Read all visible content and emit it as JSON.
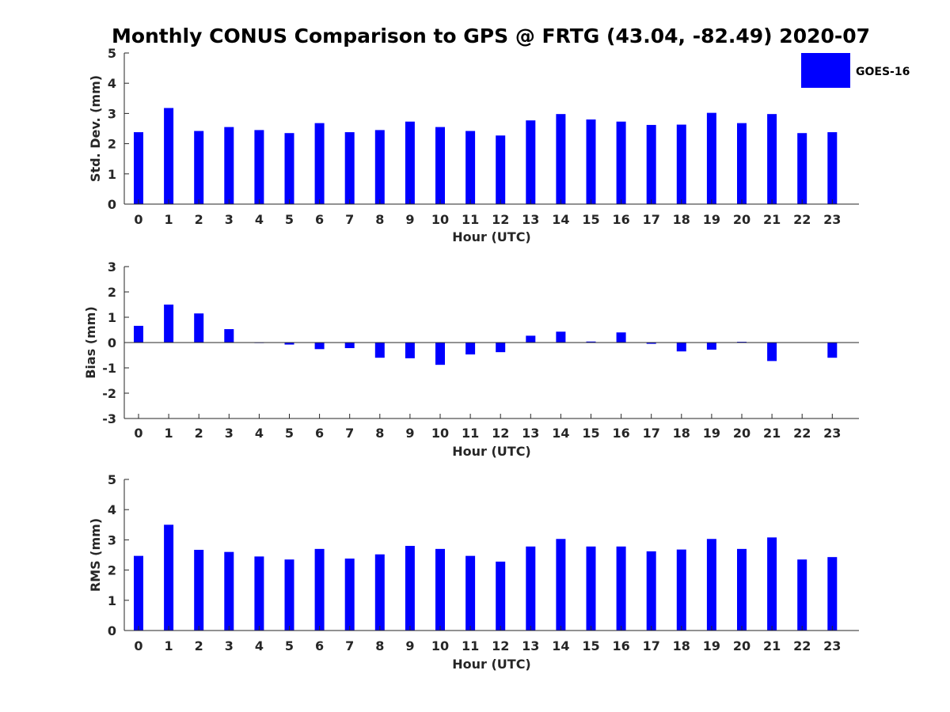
{
  "figure": {
    "title": "Monthly CONUS Comparison to GPS @ FRTG (43.04, -82.49) 2020-07"
  },
  "legend": {
    "label": "GOES-16",
    "color": "#0000ff",
    "placement": "top-right"
  },
  "chart_data": [
    {
      "type": "bar",
      "xlabel": "Hour (UTC)",
      "ylabel": "Std. Dev. (mm)",
      "ylim": [
        0,
        5
      ],
      "yticks": [
        0,
        1,
        2,
        3,
        4,
        5
      ],
      "categories": [
        "0",
        "1",
        "2",
        "3",
        "4",
        "5",
        "6",
        "7",
        "8",
        "9",
        "10",
        "11",
        "12",
        "13",
        "14",
        "15",
        "16",
        "17",
        "18",
        "19",
        "20",
        "21",
        "22",
        "23"
      ],
      "series": [
        {
          "name": "GOES-16",
          "color": "#0000ff",
          "values": [
            2.38,
            3.18,
            2.42,
            2.55,
            2.45,
            2.35,
            2.68,
            2.38,
            2.45,
            2.73,
            2.55,
            2.42,
            2.27,
            2.77,
            2.98,
            2.8,
            2.73,
            2.62,
            2.63,
            3.02,
            2.68,
            2.98,
            2.35,
            2.38
          ]
        }
      ]
    },
    {
      "type": "bar",
      "xlabel": "Hour (UTC)",
      "ylabel": "Bias (mm)",
      "ylim": [
        -3,
        3
      ],
      "yticks": [
        -3,
        -2,
        -1,
        0,
        1,
        2,
        3
      ],
      "categories": [
        "0",
        "1",
        "2",
        "3",
        "4",
        "5",
        "6",
        "7",
        "8",
        "9",
        "10",
        "11",
        "12",
        "13",
        "14",
        "15",
        "16",
        "17",
        "18",
        "19",
        "20",
        "21",
        "22",
        "23"
      ],
      "series": [
        {
          "name": "GOES-16",
          "color": "#0000ff",
          "values": [
            0.66,
            1.5,
            1.15,
            0.53,
            -0.02,
            -0.08,
            -0.26,
            -0.22,
            -0.6,
            -0.62,
            -0.88,
            -0.47,
            -0.38,
            0.27,
            0.43,
            0.04,
            0.4,
            -0.05,
            -0.35,
            -0.28,
            0.03,
            -0.73,
            0.0,
            -0.6
          ]
        }
      ]
    },
    {
      "type": "bar",
      "xlabel": "Hour (UTC)",
      "ylabel": "RMS (mm)",
      "ylim": [
        0,
        5
      ],
      "yticks": [
        0,
        1,
        2,
        3,
        4,
        5
      ],
      "categories": [
        "0",
        "1",
        "2",
        "3",
        "4",
        "5",
        "6",
        "7",
        "8",
        "9",
        "10",
        "11",
        "12",
        "13",
        "14",
        "15",
        "16",
        "17",
        "18",
        "19",
        "20",
        "21",
        "22",
        "23"
      ],
      "series": [
        {
          "name": "GOES-16",
          "color": "#0000ff",
          "values": [
            2.47,
            3.5,
            2.67,
            2.6,
            2.45,
            2.35,
            2.7,
            2.38,
            2.52,
            2.8,
            2.7,
            2.47,
            2.28,
            2.78,
            3.03,
            2.78,
            2.78,
            2.62,
            2.68,
            3.03,
            2.7,
            3.08,
            2.35,
            2.43
          ]
        }
      ]
    }
  ]
}
